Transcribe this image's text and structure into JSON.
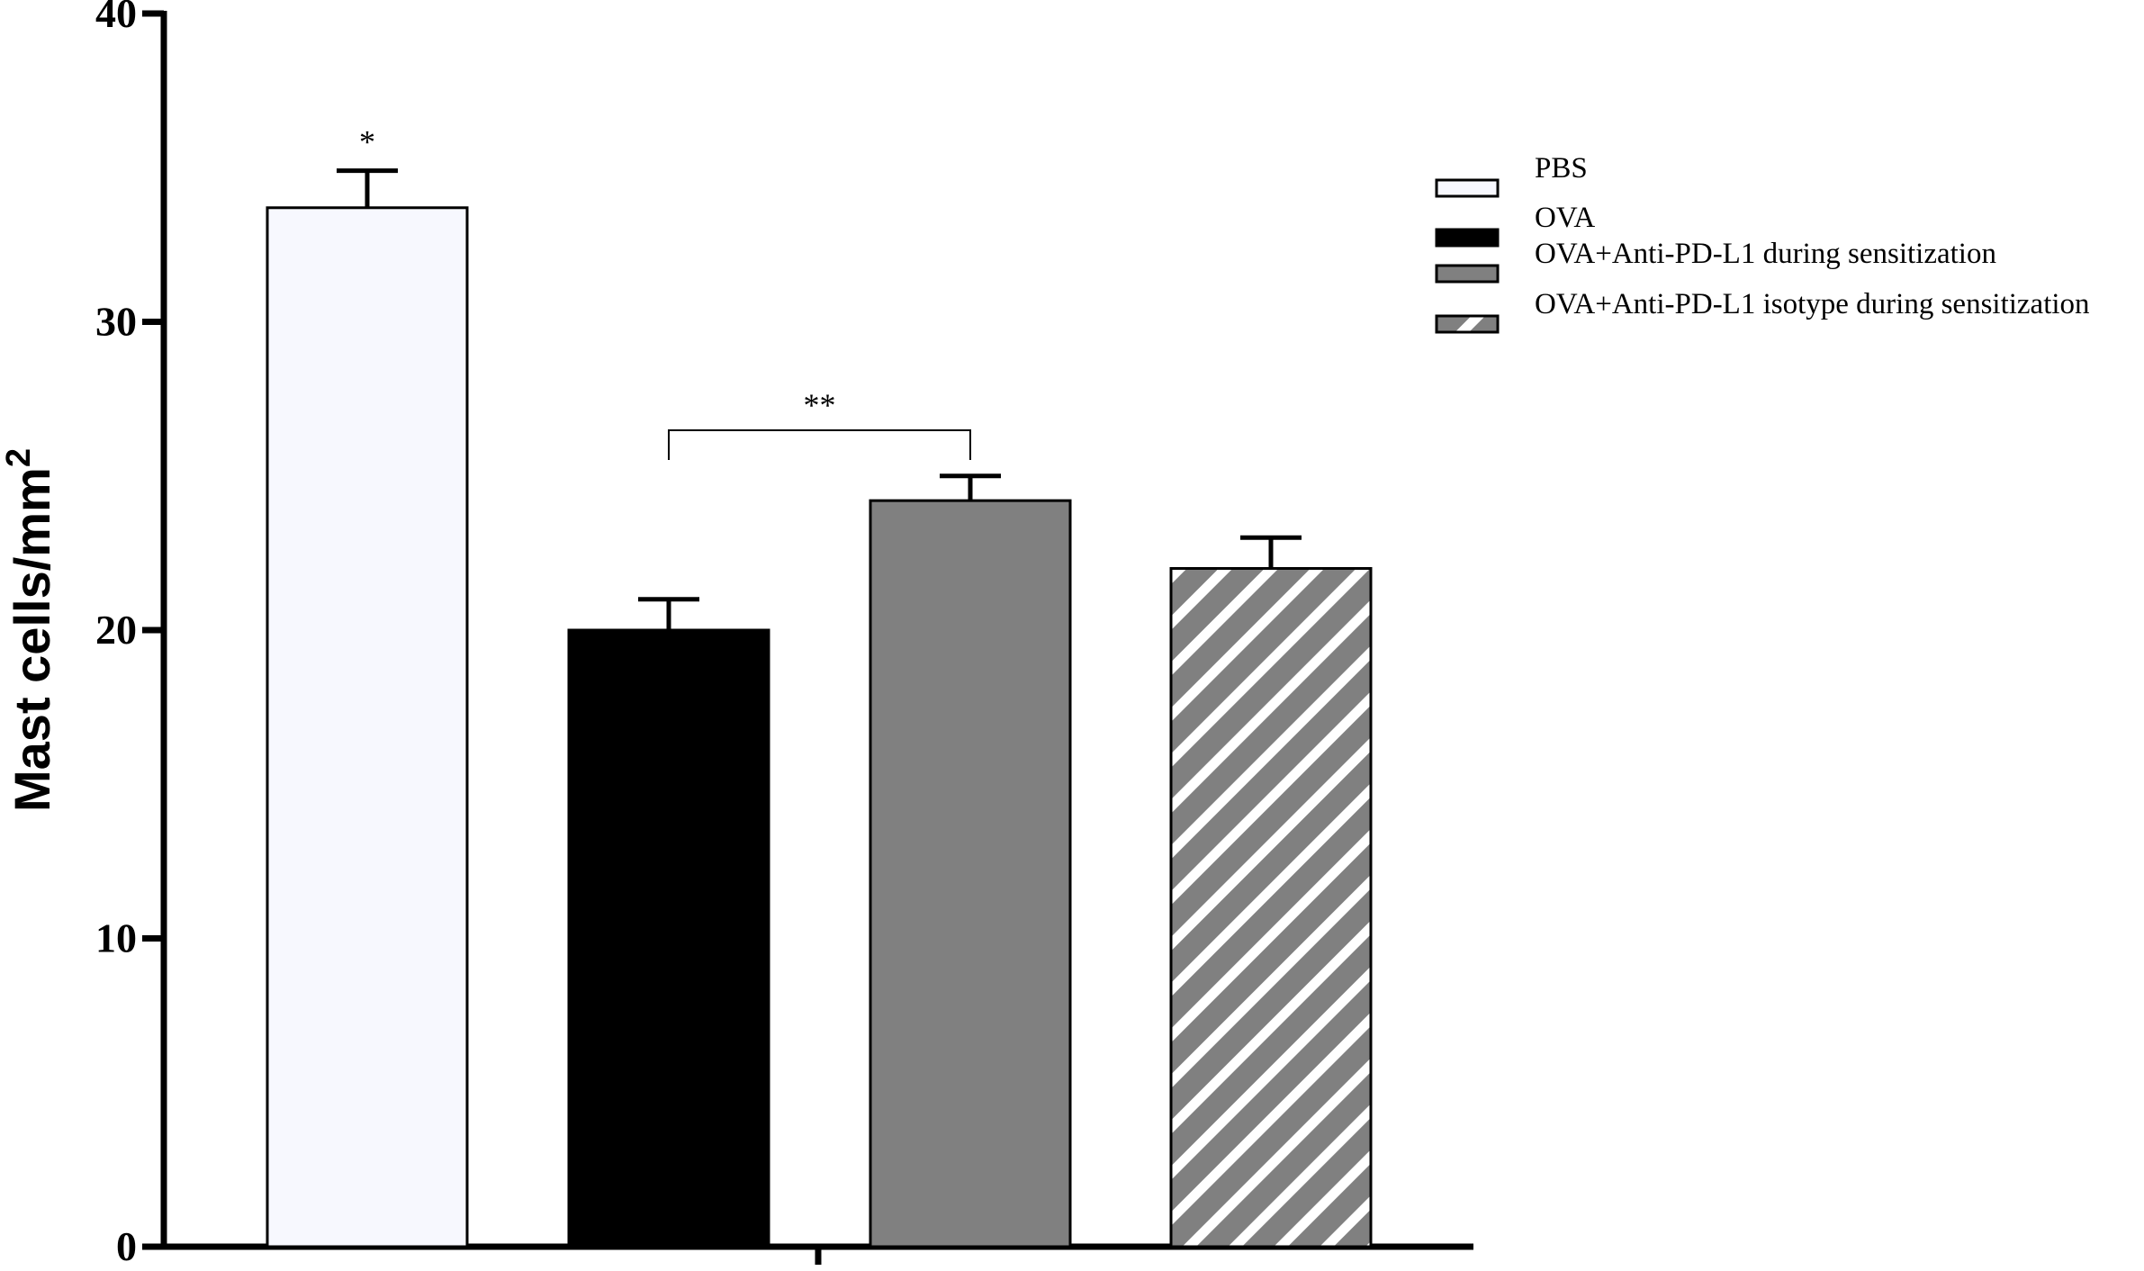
{
  "chart_data": {
    "type": "bar",
    "ylabel": "Mast cells/mm",
    "ylabel_superscript": "2",
    "ylim": [
      0,
      40
    ],
    "yticks": [
      0,
      10,
      20,
      30,
      40
    ],
    "grid": false,
    "legend_position": "top-right",
    "series": [
      {
        "name": "PBS",
        "value": 33.7,
        "error": 1.2,
        "color": "#f7f8fe",
        "pattern": "solid"
      },
      {
        "name": "OVA",
        "value": 20.0,
        "error": 1.0,
        "color": "#000000",
        "pattern": "solid"
      },
      {
        "name": "OVA+Anti-PD-L1 during sensitization",
        "value": 24.2,
        "error": 0.8,
        "color": "#808080",
        "pattern": "solid"
      },
      {
        "name": "OVA+Anti-PD-L1 isotype during sensitization",
        "value": 22.0,
        "error": 1.0,
        "color": "#808080",
        "pattern": "hatched"
      }
    ],
    "annotations": [
      {
        "text": "*",
        "bar": 0
      },
      {
        "text": "**",
        "from_bar": 1,
        "to_bar": 2
      }
    ]
  }
}
